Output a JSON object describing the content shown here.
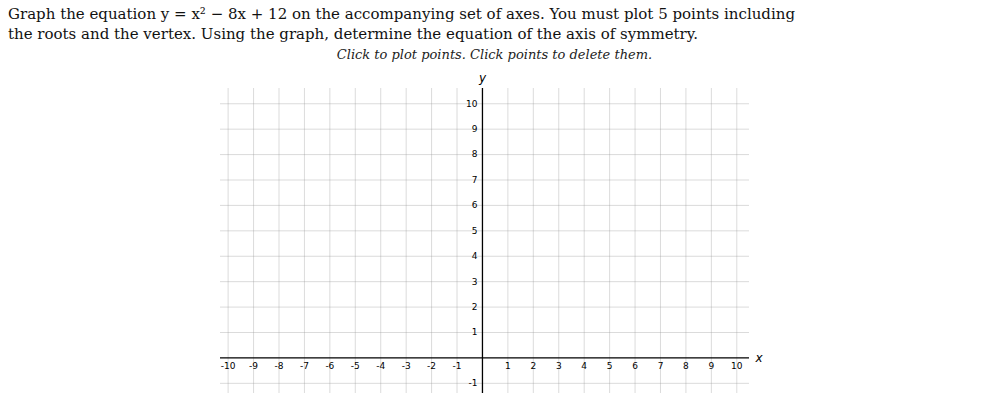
{
  "chart_data": {
    "type": "scatter",
    "title": "Graph the equation y = x² − 8x + 12 on the accompanying set of axes. You must plot 5 points including\nthe roots and the vertex. Using the graph, determine the equation of the axis of symmetry.",
    "subtitle": "Click to plot points. Click points to delete them.",
    "x_label": "x",
    "y_label": "y",
    "x": [],
    "values": [],
    "xlim": [
      -10.3,
      10.5
    ],
    "ylim": [
      -1.4,
      10.6
    ],
    "xticks": [
      -10,
      -9,
      -8,
      -7,
      -6,
      -5,
      -4,
      -3,
      -2,
      -1,
      1,
      2,
      3,
      4,
      5,
      6,
      7,
      8,
      9,
      10
    ],
    "yticks": [
      -1,
      1,
      2,
      3,
      4,
      5,
      6,
      7,
      8,
      9,
      10
    ],
    "grid": true
  }
}
